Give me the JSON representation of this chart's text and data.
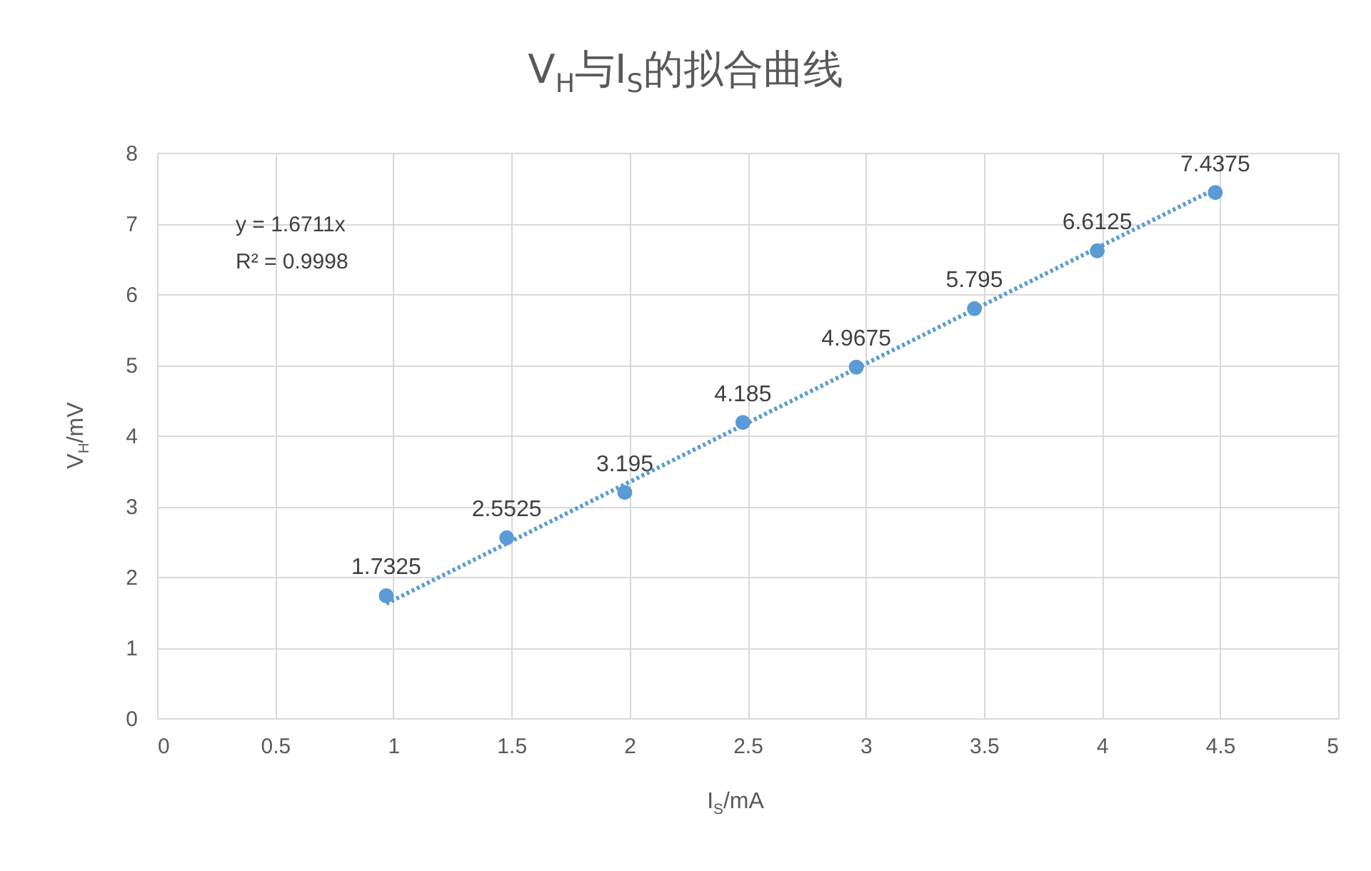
{
  "chart_data": {
    "type": "scatter",
    "title": "V$_{H}$与I$_{S}$的拟合曲线",
    "xlabel": "I$_{S}$/mA",
    "ylabel": "V$_{H}$/mV",
    "x": [
      0.97,
      1.48,
      1.98,
      2.48,
      2.96,
      3.46,
      3.98,
      4.48
    ],
    "series": [
      {
        "color": "#5b9bd5",
        "values": [
          1.7325,
          2.5525,
          3.195,
          4.185,
          4.9675,
          5.795,
          6.6125,
          7.4375
        ],
        "value_labels": [
          "1.7325",
          "2.5525",
          "3.195",
          "4.185",
          "4.9675",
          "5.795",
          "6.6125",
          "7.4375"
        ]
      },
      {
        "type": "line",
        "x": [
          0.97,
          4.48
        ],
        "values": [
          1.62,
          7.49
        ],
        "color": "#5b9bd5",
        "line_style": "dotted",
        "marker": "none"
      }
    ],
    "marker": "circle",
    "annotations": [
      "y = 1.6711x",
      "R² = 0.9998"
    ],
    "xlim": [
      0,
      5
    ],
    "xticks": [
      0,
      0.5,
      1,
      1.5,
      2,
      2.5,
      3,
      3.5,
      4,
      4.5,
      5
    ],
    "ylim": [
      0,
      8
    ],
    "yticks": [
      0,
      1,
      2,
      3,
      4,
      5,
      6,
      7,
      8
    ],
    "grid": true
  }
}
